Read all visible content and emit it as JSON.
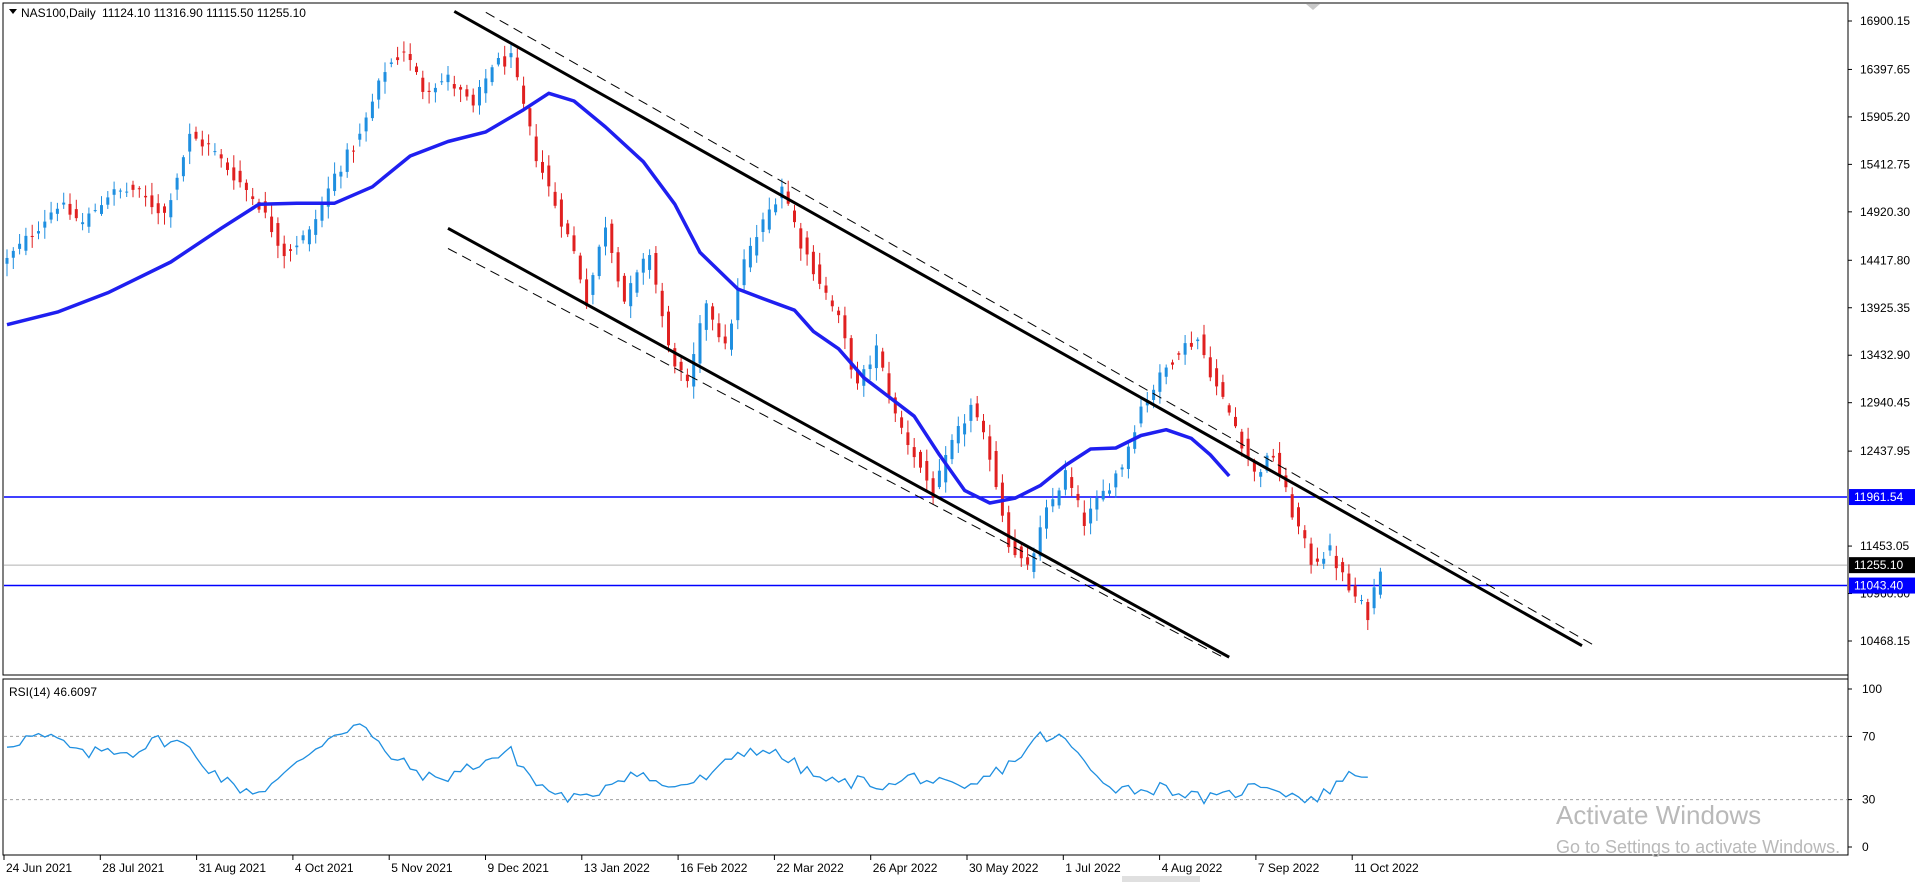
{
  "chart_data": {
    "type": "candlestick",
    "symbol_label": "NAS100,Daily",
    "ohlc_label": "11124.10 11316.90 11115.50 11255.10",
    "price_ticks": [
      "16900.15",
      "16397.65",
      "15905.20",
      "15412.75",
      "14920.30",
      "14417.80",
      "13925.35",
      "13432.90",
      "12940.45",
      "12437.95",
      "11453.05",
      "10960.60",
      "10468.15"
    ],
    "date_ticks": [
      "24 Jun 2021",
      "28 Jul 2021",
      "31 Aug 2021",
      "4 Oct 2021",
      "5 Nov 2021",
      "9 Dec 2021",
      "13 Jan 2022",
      "16 Feb 2022",
      "22 Mar 2022",
      "26 Apr 2022",
      "30 May 2022",
      "1 Jul 2022",
      "4 Aug 2022",
      "7 Sep 2022",
      "11 Oct 2022"
    ],
    "ylim": [
      10300,
      17020
    ],
    "last_price": {
      "label": "11255.10",
      "value": 11255.1
    },
    "support_lines": [
      {
        "label": "11961.54",
        "value": 11961.54
      },
      {
        "label": "11043.40",
        "value": 11043.4
      }
    ],
    "close_path": [
      [
        0,
        14420
      ],
      [
        4,
        14700
      ],
      [
        8,
        15000
      ],
      [
        12,
        14800
      ],
      [
        16,
        15100
      ],
      [
        20,
        15150
      ],
      [
        25,
        14900
      ],
      [
        29,
        15700
      ],
      [
        32,
        15600
      ],
      [
        36,
        15300
      ],
      [
        40,
        15000
      ],
      [
        44,
        14500
      ],
      [
        48,
        14700
      ],
      [
        52,
        15300
      ],
      [
        56,
        15700
      ],
      [
        60,
        16400
      ],
      [
        63,
        16600
      ],
      [
        66,
        16200
      ],
      [
        70,
        16300
      ],
      [
        74,
        16000
      ],
      [
        77,
        16450
      ],
      [
        80,
        16500
      ],
      [
        84,
        15500
      ],
      [
        87,
        15000
      ],
      [
        90,
        14500
      ],
      [
        92,
        14000
      ],
      [
        95,
        14800
      ],
      [
        98,
        14000
      ],
      [
        102,
        14500
      ],
      [
        105,
        13500
      ],
      [
        108,
        13100
      ],
      [
        111,
        14000
      ],
      [
        114,
        13500
      ],
      [
        117,
        14400
      ],
      [
        120,
        14800
      ],
      [
        123,
        15200
      ],
      [
        126,
        14600
      ],
      [
        129,
        14200
      ],
      [
        132,
        13800
      ],
      [
        135,
        13100
      ],
      [
        138,
        13500
      ],
      [
        141,
        12800
      ],
      [
        144,
        12400
      ],
      [
        147,
        12000
      ],
      [
        150,
        12500
      ],
      [
        153,
        12900
      ],
      [
        156,
        12400
      ],
      [
        159,
        11500
      ],
      [
        162,
        11200
      ],
      [
        165,
        11800
      ],
      [
        168,
        12200
      ],
      [
        171,
        11700
      ],
      [
        174,
        12000
      ],
      [
        177,
        12300
      ],
      [
        180,
        12900
      ],
      [
        183,
        13200
      ],
      [
        186,
        13500
      ],
      [
        189,
        13600
      ],
      [
        192,
        13100
      ],
      [
        195,
        12700
      ],
      [
        198,
        12200
      ],
      [
        201,
        12400
      ],
      [
        204,
        11800
      ],
      [
        207,
        11300
      ],
      [
        210,
        11400
      ],
      [
        213,
        11000
      ],
      [
        216,
        10750
      ],
      [
        218,
        11255
      ]
    ],
    "moving_average": {
      "name": "",
      "color": "#1f1ff0",
      "points": [
        [
          0,
          13750
        ],
        [
          8,
          13880
        ],
        [
          16,
          14080
        ],
        [
          26,
          14400
        ],
        [
          34,
          14750
        ],
        [
          40,
          15000
        ],
        [
          46,
          15010
        ],
        [
          52,
          15010
        ],
        [
          58,
          15180
        ],
        [
          64,
          15500
        ],
        [
          70,
          15650
        ],
        [
          76,
          15750
        ],
        [
          82,
          15980
        ],
        [
          86,
          16150
        ],
        [
          90,
          16070
        ],
        [
          95,
          15800
        ],
        [
          101,
          15440
        ],
        [
          106,
          15000
        ],
        [
          110,
          14500
        ],
        [
          116,
          14120
        ],
        [
          120,
          14020
        ],
        [
          125,
          13900
        ],
        [
          128,
          13680
        ],
        [
          132,
          13500
        ],
        [
          136,
          13200
        ],
        [
          140,
          13000
        ],
        [
          144,
          12800
        ],
        [
          148,
          12400
        ],
        [
          152,
          12030
        ],
        [
          156,
          11900
        ],
        [
          160,
          11950
        ],
        [
          164,
          12080
        ],
        [
          168,
          12290
        ],
        [
          172,
          12460
        ],
        [
          176,
          12470
        ],
        [
          180,
          12600
        ],
        [
          184,
          12660
        ],
        [
          188,
          12570
        ],
        [
          191,
          12400
        ],
        [
          194,
          12180
        ]
      ]
    },
    "channel_lines": [
      {
        "style": "solid",
        "from": [
          71,
          17000
        ],
        "to": [
          250,
          10420
        ]
      },
      {
        "style": "solid",
        "from": [
          70,
          14750
        ],
        "to": [
          194,
          10300
        ]
      },
      {
        "style": "dashed",
        "from": [
          76,
          16990
        ],
        "to": [
          252,
          10420
        ]
      },
      {
        "style": "dashed",
        "from": [
          70,
          14540
        ],
        "to": [
          193,
          10300
        ]
      }
    ],
    "rsi": {
      "label": "RSI(14) 46.6097",
      "ticks": [
        "100",
        "70",
        "30",
        "0"
      ],
      "levels": [
        70,
        30
      ],
      "ylim": [
        0,
        100
      ],
      "color": "#1f8fe0",
      "points": [
        [
          0,
          65
        ],
        [
          4,
          70
        ],
        [
          8,
          68
        ],
        [
          12,
          58
        ],
        [
          16,
          62
        ],
        [
          20,
          60
        ],
        [
          24,
          68
        ],
        [
          28,
          65
        ],
        [
          32,
          50
        ],
        [
          36,
          38
        ],
        [
          40,
          35
        ],
        [
          44,
          45
        ],
        [
          48,
          60
        ],
        [
          52,
          72
        ],
        [
          56,
          78
        ],
        [
          60,
          60
        ],
        [
          64,
          50
        ],
        [
          68,
          42
        ],
        [
          72,
          48
        ],
        [
          76,
          55
        ],
        [
          80,
          60
        ],
        [
          84,
          40
        ],
        [
          88,
          32
        ],
        [
          92,
          30
        ],
        [
          96,
          42
        ],
        [
          100,
          48
        ],
        [
          104,
          38
        ],
        [
          108,
          40
        ],
        [
          112,
          45
        ],
        [
          116,
          60
        ],
        [
          120,
          62
        ],
        [
          124,
          55
        ],
        [
          128,
          45
        ],
        [
          132,
          40
        ],
        [
          136,
          42
        ],
        [
          140,
          38
        ],
        [
          144,
          45
        ],
        [
          148,
          40
        ],
        [
          152,
          35
        ],
        [
          156,
          45
        ],
        [
          160,
          55
        ],
        [
          164,
          70
        ],
        [
          168,
          68
        ],
        [
          172,
          48
        ],
        [
          176,
          38
        ],
        [
          180,
          36
        ],
        [
          184,
          38
        ],
        [
          188,
          32
        ],
        [
          192,
          30
        ],
        [
          196,
          36
        ],
        [
          200,
          40
        ],
        [
          204,
          33
        ],
        [
          208,
          30
        ],
        [
          212,
          44
        ],
        [
          216,
          47
        ]
      ]
    }
  },
  "watermark": {
    "title": "Activate Windows",
    "subtitle": "Go to Settings to activate Windows."
  },
  "colors": {
    "bull": "#1f8fe0",
    "bear": "#e02020",
    "level_line": "#0000ff",
    "channel": "#000000",
    "grid_level": "#b0b0b0"
  }
}
